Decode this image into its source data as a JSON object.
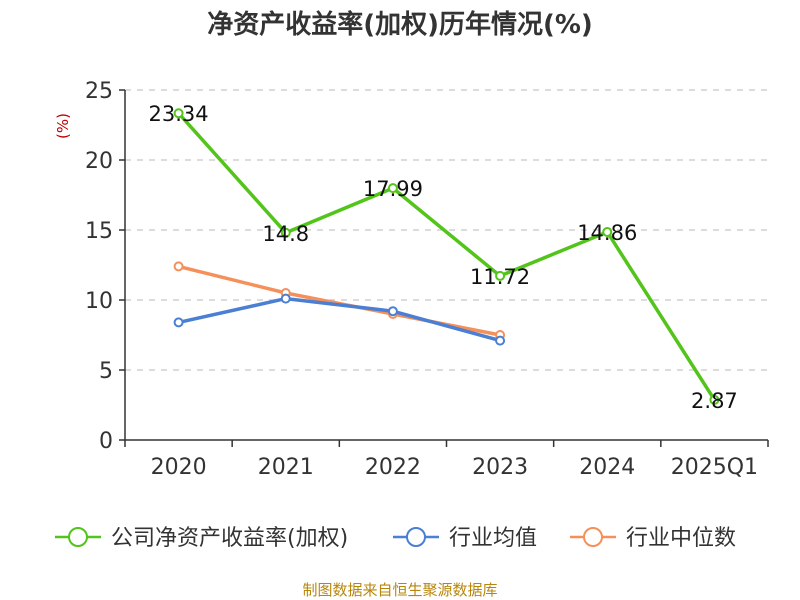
{
  "chart_data": {
    "type": "line",
    "title": "净资产收益率(加权)历年情况(%)",
    "ylabel": "(%)",
    "categories": [
      "2020",
      "2021",
      "2022",
      "2023",
      "2024",
      "2025Q1"
    ],
    "ylim": [
      0,
      25
    ],
    "yticks": [
      0,
      5,
      10,
      15,
      20,
      25
    ],
    "grid": "horizontal-dashed",
    "legend_position": "bottom",
    "series": [
      {
        "name": "公司净资产收益率(加权)",
        "color": "#52c41a",
        "values": [
          23.34,
          14.8,
          17.99,
          11.72,
          14.86,
          2.87
        ],
        "labels": [
          "23.34",
          "14.8",
          "17.99",
          "11.72",
          "14.86",
          "2.87"
        ]
      },
      {
        "name": "行业均值",
        "color": "#4a7fd4",
        "values": [
          8.4,
          10.1,
          9.2,
          7.1,
          null,
          null
        ]
      },
      {
        "name": "行业中位数",
        "color": "#f5905a",
        "values": [
          12.4,
          10.5,
          9.0,
          7.5,
          null,
          null
        ]
      }
    ]
  },
  "footer": {
    "source": "制图数据来自恒生聚源数据库"
  }
}
